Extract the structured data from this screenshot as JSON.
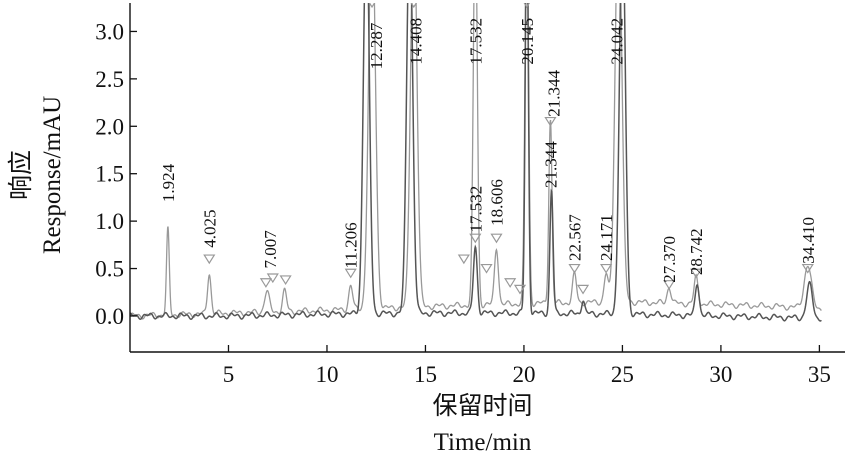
{
  "chart_data": {
    "type": "line",
    "title": "",
    "xlabel_cn": "保留时间",
    "xlabel_en": "Time/min",
    "ylabel_cn": "响应",
    "ylabel_en": "Response/mAU",
    "xlim": [
      0.0,
      36.3
    ],
    "ylim": [
      -0.38,
      3.3
    ],
    "x_ticks": [
      5,
      10,
      15,
      20,
      25,
      30,
      35
    ],
    "y_ticks": [
      0.0,
      0.5,
      1.0,
      1.5,
      2.0,
      2.5,
      3.0
    ],
    "tick_labels_x": [
      "5",
      "10",
      "15",
      "20",
      "25",
      "30",
      "35"
    ],
    "tick_labels_y": [
      "0.0",
      "0.5",
      "1.0",
      "1.5",
      "2.0",
      "2.5",
      "3.0"
    ],
    "grid": false,
    "legend": "none",
    "colors": {
      "trace_dark": "#555555",
      "trace_light": "#999999",
      "axis": "#111111"
    },
    "series": [
      {
        "baseline": [
          [
            0.0,
            0.0
          ],
          [
            5,
            0.03
          ],
          [
            10,
            0.06
          ],
          [
            15,
            0.1
          ],
          [
            20,
            0.13
          ],
          [
            25,
            0.15
          ],
          [
            30,
            0.12
          ],
          [
            33,
            0.1
          ],
          [
            36,
            0.07
          ]
        ],
        "peaks": [
          {
            "rt": 1.924,
            "height": 0.9,
            "width": 0.07
          },
          {
            "rt": 4.025,
            "height": 0.43,
            "width": 0.09
          },
          {
            "rt": 6.95,
            "height": 0.22,
            "width": 0.12
          },
          {
            "rt": 7.85,
            "height": 0.22,
            "width": 0.1
          },
          {
            "rt": 11.206,
            "height": 0.25,
            "width": 0.1
          },
          {
            "rt": 12.287,
            "height": 4.2,
            "width": 0.17
          },
          {
            "rt": 14.408,
            "height": 4.2,
            "width": 0.16
          },
          {
            "rt": 17.532,
            "height": 4.2,
            "width": 0.1
          },
          {
            "rt": 18.606,
            "height": 0.6,
            "width": 0.1
          },
          {
            "rt": 20.145,
            "height": 4.2,
            "width": 0.09
          },
          {
            "rt": 21.344,
            "height": 1.95,
            "width": 0.08
          },
          {
            "rt": 22.567,
            "height": 0.3,
            "width": 0.1
          },
          {
            "rt": 24.171,
            "height": 0.3,
            "width": 0.1
          },
          {
            "rt": 24.8,
            "height": 4.2,
            "width": 0.17
          },
          {
            "rt": 27.37,
            "height": 0.17,
            "width": 0.1
          },
          {
            "rt": 28.742,
            "height": 0.28,
            "width": 0.1
          },
          {
            "rt": 34.41,
            "height": 0.45,
            "width": 0.18
          }
        ]
      },
      {
        "baseline": [
          [
            0.0,
            0.0
          ],
          [
            5,
            0.0
          ],
          [
            10,
            0.02
          ],
          [
            15,
            0.03
          ],
          [
            20,
            0.03
          ],
          [
            25,
            0.02
          ],
          [
            30,
            0.0
          ],
          [
            36,
            -0.03
          ]
        ],
        "peaks": [
          {
            "rt": 12.0,
            "height": 4.2,
            "width": 0.15
          },
          {
            "rt": 14.2,
            "height": 4.2,
            "width": 0.15
          },
          {
            "rt": 17.532,
            "height": 0.7,
            "width": 0.1
          },
          {
            "rt": 20.145,
            "height": 4.2,
            "width": 0.08
          },
          {
            "rt": 21.4,
            "height": 1.3,
            "width": 0.08
          },
          {
            "rt": 23.0,
            "height": 0.15,
            "width": 0.08
          },
          {
            "rt": 25.0,
            "height": 4.2,
            "width": 0.15
          },
          {
            "rt": 28.8,
            "height": 0.35,
            "width": 0.1
          },
          {
            "rt": 34.5,
            "height": 0.35,
            "width": 0.15
          }
        ]
      }
    ],
    "annotations": [
      {
        "label": "1.924",
        "rt": 1.924,
        "y": 1.2
      },
      {
        "label": "4.025",
        "rt": 4.025,
        "y": 0.72
      },
      {
        "label": "7.007",
        "rt": 7.1,
        "y": 0.5
      },
      {
        "label": "11.206",
        "rt": 11.206,
        "y": 0.5
      },
      {
        "label": "12.287",
        "rt": 12.5,
        "y": 2.6
      },
      {
        "label": "14.408",
        "rt": 14.5,
        "y": 2.65
      },
      {
        "label": "17.532",
        "rt": 17.532,
        "y": 2.65
      },
      {
        "label": "20.145",
        "rt": 20.145,
        "y": 2.65
      },
      {
        "label": "21.344",
        "rt": 21.5,
        "y": 2.1
      },
      {
        "label": "24.042",
        "rt": 24.7,
        "y": 2.65
      },
      {
        "label": "17.532",
        "rt": 17.532,
        "y": 0.88
      },
      {
        "label": "18.606",
        "rt": 18.606,
        "y": 0.95
      },
      {
        "label": "21.344",
        "rt": 21.344,
        "y": 1.35
      },
      {
        "label": "22.567",
        "rt": 22.567,
        "y": 0.58
      },
      {
        "label": "24.171",
        "rt": 24.171,
        "y": 0.58
      },
      {
        "label": "27.370",
        "rt": 27.37,
        "y": 0.35
      },
      {
        "label": "28.742",
        "rt": 28.742,
        "y": 0.43
      },
      {
        "label": "34.410",
        "rt": 34.41,
        "y": 0.55
      }
    ],
    "markers": [
      {
        "rt": 4.025,
        "y": 0.6
      },
      {
        "rt": 6.9,
        "y": 0.35
      },
      {
        "rt": 7.25,
        "y": 0.4
      },
      {
        "rt": 7.9,
        "y": 0.38
      },
      {
        "rt": 11.206,
        "y": 0.45
      },
      {
        "rt": 12.287,
        "y": 3.3
      },
      {
        "rt": 14.408,
        "y": 3.3
      },
      {
        "rt": 16.95,
        "y": 0.6
      },
      {
        "rt": 17.532,
        "y": 0.82
      },
      {
        "rt": 18.1,
        "y": 0.5
      },
      {
        "rt": 18.606,
        "y": 0.82
      },
      {
        "rt": 19.3,
        "y": 0.35
      },
      {
        "rt": 19.8,
        "y": 0.28
      },
      {
        "rt": 20.145,
        "y": 3.3
      },
      {
        "rt": 21.344,
        "y": 2.05
      },
      {
        "rt": 22.567,
        "y": 0.5
      },
      {
        "rt": 23.0,
        "y": 0.28
      },
      {
        "rt": 24.171,
        "y": 0.5
      },
      {
        "rt": 27.37,
        "y": 0.33
      },
      {
        "rt": 28.742,
        "y": 0.45
      },
      {
        "rt": 34.41,
        "y": 0.5
      }
    ]
  }
}
